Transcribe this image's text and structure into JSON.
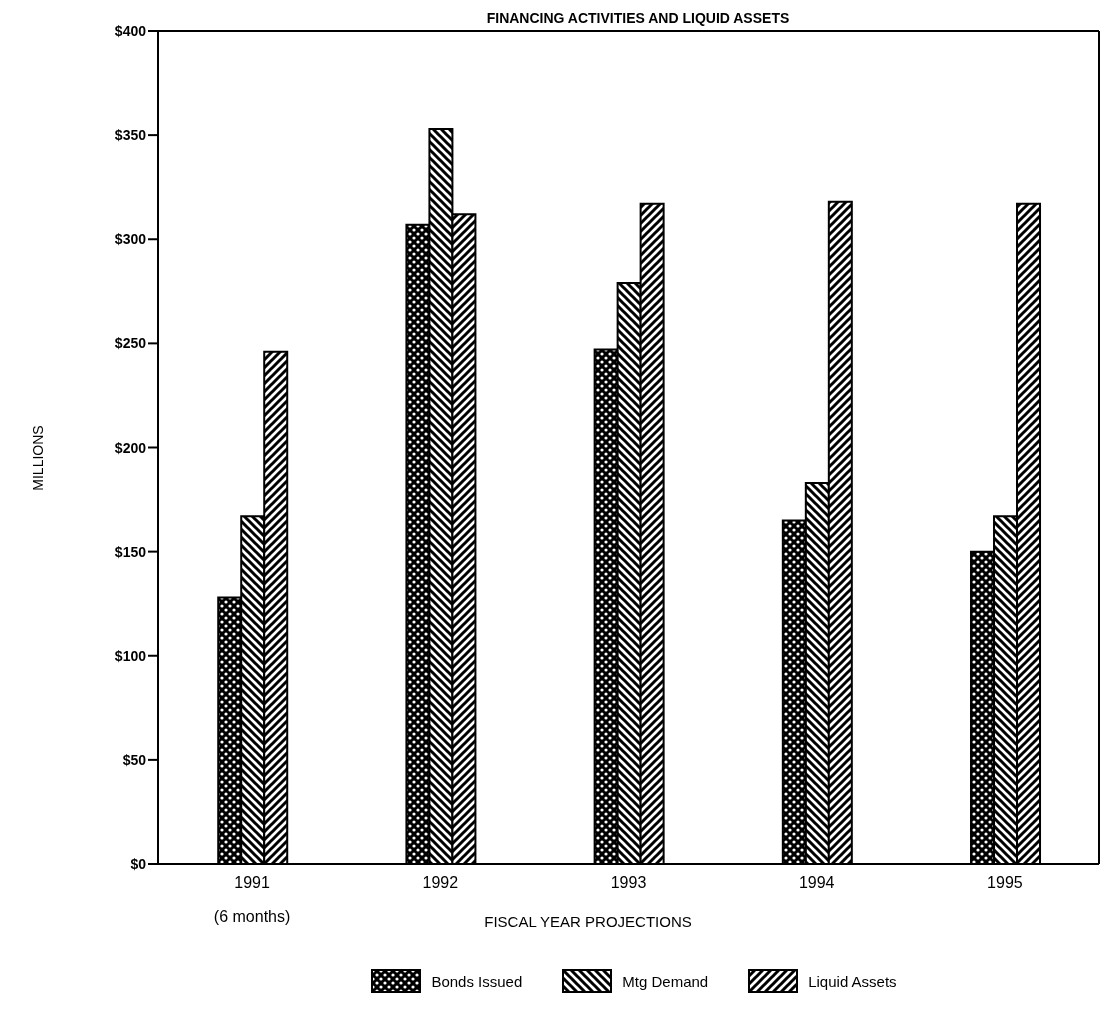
{
  "chart_data": {
    "type": "bar",
    "title": "FINANCING ACTIVITIES AND LIQUID ASSETS",
    "xlabel": "FISCAL YEAR PROJECTIONS",
    "ylabel": "MILLIONS",
    "categories": [
      "1991 (6 months)",
      "1992",
      "1993",
      "1994",
      "1995"
    ],
    "series": [
      {
        "name": "Bonds Issued",
        "color": "#000000",
        "values": [
          128,
          307,
          247,
          165,
          150
        ]
      },
      {
        "name": "Mtg Demand",
        "color": "#000000",
        "values": [
          167,
          353,
          279,
          183,
          167
        ]
      },
      {
        "name": "Liquid Assets",
        "color": "#000000",
        "values": [
          246,
          312,
          317,
          318,
          317
        ]
      }
    ],
    "ylim": [
      0,
      400
    ],
    "yticks": [
      {
        "value": 0,
        "label": "$0"
      },
      {
        "value": 50,
        "label": "$50"
      },
      {
        "value": 100,
        "label": "$100"
      },
      {
        "value": 150,
        "label": "$150"
      },
      {
        "value": 200,
        "label": "$200"
      },
      {
        "value": 250,
        "label": "$250"
      },
      {
        "value": 300,
        "label": "$300"
      },
      {
        "value": 350,
        "label": "$350"
      },
      {
        "value": 400,
        "label": "$400"
      }
    ],
    "legend": "bottom",
    "grid": false
  }
}
